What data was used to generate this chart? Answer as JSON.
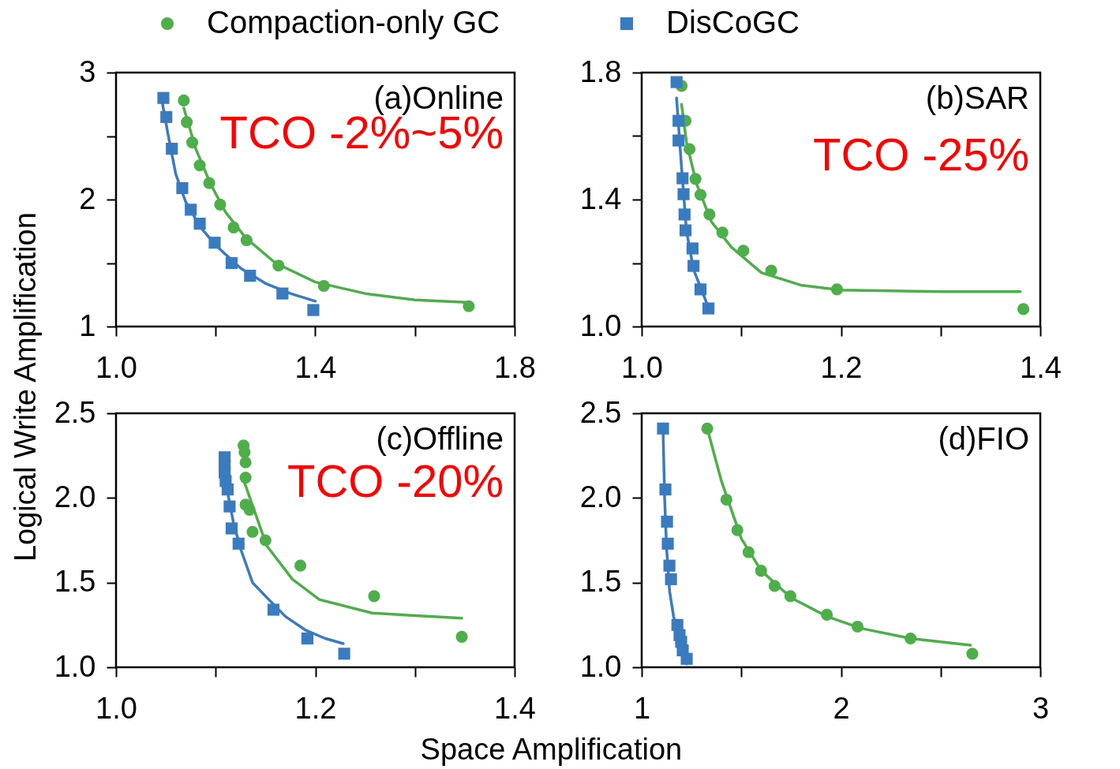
{
  "chart_data": [
    {
      "type": "scatter",
      "ylabel": "Logical Write Amplification",
      "legend": "top",
      "annotations": [
        "(a)Online",
        "TCO -2%~5%"
      ],
      "xlim": [
        1.0,
        1.8
      ],
      "xticks": [
        {
          "value": 1,
          "label": "1.0"
        },
        {
          "value": 1.2,
          "label": null
        },
        1.4,
        {
          "value": 1.6,
          "label": null
        },
        1.8
      ],
      "ylim": [
        1,
        3
      ],
      "yticks": [
        1,
        {
          "value": 1.5,
          "label": null
        },
        2,
        {
          "value": 2.5,
          "label": null
        },
        3
      ],
      "series": [
        {
          "name": "Compaction-only GC",
          "color": "#4dae4a",
          "marker": "circle",
          "x": [
            1.136,
            1.142,
            1.153,
            1.168,
            1.187,
            1.209,
            1.236,
            1.262,
            1.326,
            1.417,
            1.708
          ],
          "values": [
            2.78,
            2.61,
            2.45,
            2.27,
            2.13,
            1.96,
            1.78,
            1.68,
            1.48,
            1.32,
            1.16
          ]
        },
        {
          "name": "DisCoGC",
          "color": "#3a7bbf",
          "marker": "square",
          "x": [
            1.095,
            1.101,
            1.112,
            1.133,
            1.15,
            1.168,
            1.198,
            1.232,
            1.269,
            1.334,
            1.396
          ],
          "values": [
            2.8,
            2.65,
            2.4,
            2.09,
            1.92,
            1.81,
            1.66,
            1.5,
            1.4,
            1.26,
            1.13
          ]
        },
        {
          "type": "line",
          "color": "#4dae4a",
          "x": [
            1.136,
            1.16,
            1.19,
            1.22,
            1.26,
            1.32,
            1.4,
            1.5,
            1.6,
            1.71
          ],
          "values": [
            2.72,
            2.4,
            2.12,
            1.9,
            1.7,
            1.5,
            1.35,
            1.26,
            1.21,
            1.19
          ]
        },
        {
          "type": "line",
          "color": "#3a7bbf",
          "x": [
            1.093,
            1.105,
            1.12,
            1.14,
            1.17,
            1.2,
            1.25,
            1.3,
            1.35,
            1.4
          ],
          "values": [
            2.76,
            2.5,
            2.2,
            1.98,
            1.78,
            1.64,
            1.46,
            1.34,
            1.26,
            1.2
          ]
        }
      ]
    },
    {
      "type": "scatter",
      "annotations": [
        "(b)SAR",
        "TCO -25%"
      ],
      "xlim": [
        1.0,
        1.4
      ],
      "xticks": [
        {
          "value": 1,
          "label": "1.0"
        },
        {
          "value": 1.1,
          "label": null
        },
        1.2,
        {
          "value": 1.3,
          "label": null
        },
        1.4
      ],
      "ylim": [
        1.0,
        1.8
      ],
      "yticks": [
        {
          "value": 1,
          "label": "1.0"
        },
        {
          "value": 1.2,
          "label": null
        },
        1.4,
        {
          "value": 1.6,
          "label": null
        },
        1.8
      ],
      "series": [
        {
          "name": "Compaction-only GC",
          "color": "#4dae4a",
          "marker": "circle",
          "x": [
            1.04,
            1.044,
            1.048,
            1.054,
            1.059,
            1.068,
            1.081,
            1.102,
            1.13,
            1.196,
            1.383
          ],
          "values": [
            1.758,
            1.648,
            1.559,
            1.465,
            1.415,
            1.353,
            1.296,
            1.239,
            1.176,
            1.117,
            1.055
          ]
        },
        {
          "name": "DisCoGC",
          "color": "#3a7bbf",
          "marker": "square",
          "x": [
            1.035,
            1.037,
            1.037,
            1.041,
            1.042,
            1.043,
            1.044,
            1.051,
            1.052,
            1.059,
            1.067
          ],
          "values": [
            1.77,
            1.648,
            1.586,
            1.467,
            1.417,
            1.353,
            1.303,
            1.246,
            1.191,
            1.117,
            1.057
          ]
        },
        {
          "type": "line",
          "color": "#4dae4a",
          "x": [
            1.04,
            1.045,
            1.055,
            1.07,
            1.09,
            1.12,
            1.16,
            1.2,
            1.3,
            1.38
          ],
          "values": [
            1.7,
            1.58,
            1.45,
            1.33,
            1.25,
            1.17,
            1.13,
            1.115,
            1.11,
            1.11
          ]
        },
        {
          "type": "line",
          "color": "#3a7bbf",
          "x": [
            1.035,
            1.04,
            1.045,
            1.052,
            1.067
          ],
          "values": [
            1.72,
            1.5,
            1.3,
            1.18,
            1.06
          ]
        }
      ]
    },
    {
      "type": "scatter",
      "xlabel": "Space Amplification",
      "annotations": [
        "(c)Offline",
        "TCO -20%"
      ],
      "xlim": [
        1.0,
        1.4
      ],
      "xticks": [
        {
          "value": 1,
          "label": "1.0"
        },
        {
          "value": 1.1,
          "label": null
        },
        1.2,
        {
          "value": 1.3,
          "label": null
        },
        1.4
      ],
      "ylim": [
        1.0,
        2.5
      ],
      "yticks": [
        {
          "value": 1,
          "label": "1.0"
        },
        1.5,
        {
          "value": 2,
          "label": "2.0"
        },
        2.5
      ],
      "series": [
        {
          "name": "Compaction-only GC",
          "color": "#4dae4a",
          "marker": "circle",
          "x": [
            1.128,
            1.129,
            1.13,
            1.13,
            1.13,
            1.134,
            1.137,
            1.15,
            1.185,
            1.259,
            1.347
          ],
          "values": [
            2.31,
            2.27,
            2.21,
            2.12,
            1.96,
            1.93,
            1.8,
            1.75,
            1.6,
            1.42,
            1.18
          ]
        },
        {
          "name": "DisCoGC",
          "color": "#3a7bbf",
          "marker": "square",
          "x": [
            1.109,
            1.109,
            1.109,
            1.11,
            1.112,
            1.114,
            1.116,
            1.123,
            1.158,
            1.192,
            1.229
          ],
          "values": [
            2.24,
            2.19,
            2.15,
            2.1,
            2.05,
            1.95,
            1.82,
            1.73,
            1.34,
            1.17,
            1.08
          ]
        },
        {
          "type": "line",
          "color": "#4dae4a",
          "x": [
            1.129,
            1.151,
            1.177,
            1.204,
            1.257,
            1.347
          ],
          "values": [
            2.09,
            1.72,
            1.52,
            1.4,
            1.32,
            1.29
          ]
        },
        {
          "type": "line",
          "color": "#3a7bbf",
          "x": [
            1.111,
            1.118,
            1.125,
            1.137,
            1.15,
            1.17,
            1.19,
            1.21,
            1.228
          ],
          "values": [
            2.06,
            1.85,
            1.7,
            1.5,
            1.42,
            1.3,
            1.22,
            1.17,
            1.14
          ]
        }
      ]
    },
    {
      "type": "scatter",
      "annotations": [
        "(d)FIO"
      ],
      "xlim": [
        1,
        3
      ],
      "xticks": [
        1,
        {
          "value": 1.5,
          "label": null
        },
        2,
        {
          "value": 2.5,
          "label": null
        },
        3
      ],
      "ylim": [
        1.0,
        2.5
      ],
      "yticks": [
        {
          "value": 1,
          "label": "1.0"
        },
        1.5,
        {
          "value": 2,
          "label": "2.0"
        },
        2.5
      ],
      "series": [
        {
          "name": "Compaction-only GC",
          "color": "#4dae4a",
          "marker": "circle",
          "x": [
            1.329,
            1.425,
            1.48,
            1.536,
            1.599,
            1.667,
            1.746,
            1.929,
            2.083,
            2.349,
            2.659
          ],
          "values": [
            2.41,
            1.99,
            1.81,
            1.68,
            1.57,
            1.48,
            1.42,
            1.31,
            1.24,
            1.17,
            1.08
          ]
        },
        {
          "name": "DisCoGC",
          "color": "#3a7bbf",
          "marker": "square",
          "x": [
            1.107,
            1.119,
            1.127,
            1.131,
            1.139,
            1.147,
            1.179,
            1.19,
            1.198,
            1.206,
            1.226
          ],
          "values": [
            2.41,
            2.05,
            1.86,
            1.73,
            1.6,
            1.52,
            1.25,
            1.19,
            1.15,
            1.1,
            1.05
          ]
        },
        {
          "type": "line",
          "color": "#4dae4a",
          "x": [
            1.329,
            1.4,
            1.5,
            1.6,
            1.75,
            1.93,
            2.1,
            2.35,
            2.65
          ],
          "values": [
            2.41,
            2.1,
            1.76,
            1.57,
            1.41,
            1.3,
            1.23,
            1.17,
            1.13
          ]
        },
        {
          "type": "line",
          "color": "#3a7bbf",
          "x": [
            1.107,
            1.115,
            1.125,
            1.14,
            1.16,
            1.19,
            1.226
          ],
          "values": [
            2.41,
            2.0,
            1.7,
            1.45,
            1.3,
            1.17,
            1.02
          ]
        }
      ]
    }
  ]
}
